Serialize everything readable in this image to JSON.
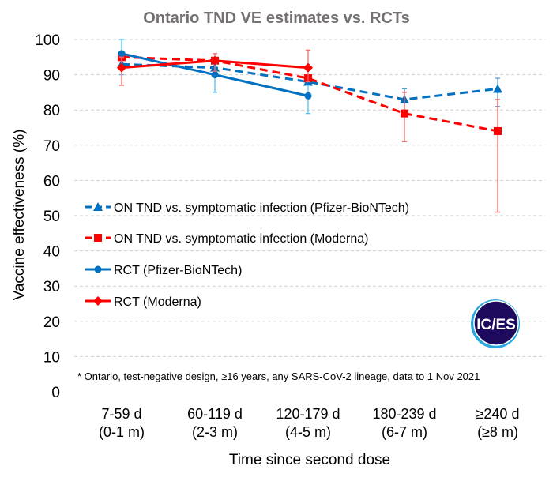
{
  "chart_data": {
    "type": "line",
    "title": "Ontario TND VE estimates vs. RCTs",
    "xlabel": "Time since second dose",
    "ylabel": "Vaccine effectiveness (%)",
    "ylim": [
      0,
      100
    ],
    "yticks": [
      0,
      10,
      20,
      30,
      40,
      50,
      60,
      70,
      80,
      90,
      100
    ],
    "grid": true,
    "legend_position": "center-left",
    "categories": [
      [
        "7-59 d",
        "(0-1 m)"
      ],
      [
        "60-119 d",
        "(2-3 m)"
      ],
      [
        "120-179 d",
        "(4-5 m)"
      ],
      [
        "180-239 d",
        "(6-7 m)"
      ],
      [
        "≥240 d",
        "(≥8 m)"
      ]
    ],
    "series": [
      {
        "name": "ON TND vs. symptomatic infection (Pfizer-BioNTech)",
        "color": "#0070C0",
        "dash": true,
        "marker": "triangle",
        "errcolor": "#5B9BD5",
        "values": [
          93,
          92,
          88,
          83,
          86
        ],
        "lower": [
          null,
          null,
          null,
          80,
          81
        ],
        "upper": [
          null,
          null,
          null,
          86,
          89
        ]
      },
      {
        "name": "ON TND vs. symptomatic infection (Moderna)",
        "color": "#FF0000",
        "dash": true,
        "marker": "square",
        "errcolor": "#FF6666",
        "values": [
          95,
          94,
          89,
          79,
          74
        ],
        "lower": [
          null,
          null,
          null,
          71,
          51
        ],
        "upper": [
          null,
          null,
          null,
          85,
          83
        ]
      },
      {
        "name": "RCT (Pfizer-BioNTech)",
        "color": "#0070C0",
        "dash": false,
        "marker": "circle",
        "errcolor": "#4FC3F7",
        "values": [
          96,
          90,
          84,
          null,
          null
        ],
        "lower": [
          90,
          85,
          79,
          null,
          null
        ],
        "upper": [
          100,
          93,
          87,
          null,
          null
        ]
      },
      {
        "name": "RCT (Moderna)",
        "color": "#FF0000",
        "dash": false,
        "marker": "diamond",
        "errcolor": "#FF6666",
        "values": [
          92,
          94,
          92,
          null,
          null
        ],
        "lower": [
          87,
          91,
          88,
          null,
          null
        ],
        "upper": [
          95,
          96,
          97,
          null,
          null
        ]
      }
    ],
    "footnote": "* Ontario, test-negative design, ≥16 years, any SARS-CoV-2 lineage, data to 1 Nov 2021"
  },
  "logo": {
    "text": "IC/ES",
    "fill": "#1E0A5C",
    "ring": "#29A8E0"
  }
}
